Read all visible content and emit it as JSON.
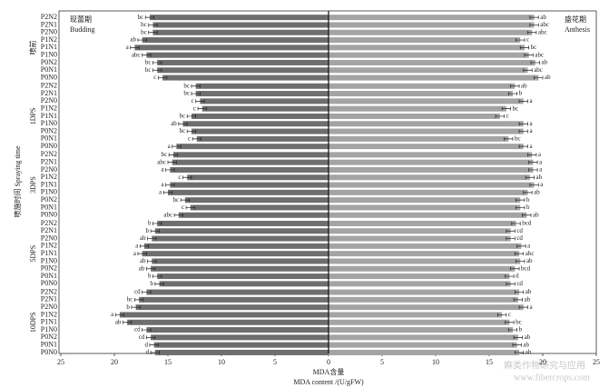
{
  "chart_data": {
    "type": "butterfly-bar",
    "groups": [
      "喷前",
      "1DPS",
      "3DPS",
      "5DPS",
      "10DPS"
    ],
    "categories": [
      "P2N2",
      "P2N1",
      "P2N0",
      "P1N2",
      "P1N1",
      "P1N0",
      "P0N2",
      "P0N1",
      "P0N0",
      "P2N2",
      "P2N1",
      "P2N0",
      "P1N2",
      "P1N1",
      "P1N0",
      "P0N2",
      "P0N1",
      "P0N0",
      "P2N2",
      "P2N1",
      "P2N0",
      "P1N2",
      "P1N1",
      "P1N0",
      "P0N2",
      "P0N1",
      "P0N0",
      "P2N2",
      "P2N1",
      "P2N0",
      "P1N2",
      "P1N1",
      "P1N0",
      "P0N2",
      "P0N1",
      "P0N0",
      "P2N2",
      "P2N1",
      "P2N0",
      "P1N2",
      "P1N1",
      "P1N0",
      "P0N2",
      "P0N1",
      "P0N0"
    ],
    "ylabel": "喷施时间 Spraying time",
    "xlabel": "MDA含量",
    "xlabel_en": "MDA content /(U/gFW)",
    "watermark": [
      "麻类作物研究与应用",
      "www.fibercrops.com"
    ],
    "series": [
      {
        "name": "现蕾期",
        "name_en": "Budding",
        "side": "left",
        "color": "#6e6e6e",
        "xlim": [
          0,
          25
        ],
        "xticks": [
          25,
          20,
          15,
          10,
          5,
          0
        ],
        "values": [
          16.7,
          16.4,
          16.4,
          17.4,
          18.1,
          17.0,
          16.0,
          16.0,
          15.5,
          12.4,
          12.4,
          12.0,
          11.8,
          12.8,
          13.6,
          12.8,
          12.3,
          14.2,
          14.5,
          14.6,
          14.8,
          13.2,
          14.8,
          15.0,
          13.4,
          12.9,
          14.0,
          16.0,
          16.2,
          16.5,
          17.2,
          17.4,
          16.5,
          16.6,
          16.0,
          15.8,
          17.0,
          17.7,
          18.0,
          19.5,
          18.8,
          17.0,
          16.6,
          16.3,
          16.2
        ],
        "errors": [
          0.4,
          0.4,
          0.4,
          0.4,
          0.4,
          0.4,
          0.4,
          0.4,
          0.4,
          0.4,
          0.4,
          0.4,
          0.4,
          0.4,
          0.4,
          0.4,
          0.4,
          0.4,
          0.4,
          0.4,
          0.4,
          0.4,
          0.4,
          0.4,
          0.4,
          0.4,
          0.4,
          0.4,
          0.4,
          0.4,
          0.4,
          0.4,
          0.4,
          0.4,
          0.4,
          0.4,
          0.4,
          0.4,
          0.4,
          0.4,
          0.4,
          0.4,
          0.4,
          0.4,
          0.4
        ],
        "letters": [
          "bc",
          "bc",
          "bc",
          "ab",
          "a",
          "abc",
          "bc",
          "bc",
          "c",
          "bc",
          "bc",
          "c",
          "c",
          "bc",
          "ab",
          "bc",
          "c",
          "a",
          "bc",
          "abc",
          "a",
          "c",
          "a",
          "a",
          "bc",
          "c",
          "abc",
          "b",
          "b",
          "ab",
          "a",
          "a",
          "ab",
          "ab",
          "b",
          "b",
          "cd",
          "bc",
          "b",
          "a",
          "ab",
          "cd",
          "cd",
          "d",
          "d"
        ]
      },
      {
        "name": "盛花期",
        "name_en": "Anthesis",
        "side": "right",
        "color": "#a4a4a4",
        "xlim": [
          0,
          25
        ],
        "xticks": [
          5,
          10,
          15,
          20,
          25
        ],
        "values": [
          19.2,
          19.2,
          19.0,
          17.9,
          18.3,
          18.7,
          19.3,
          18.6,
          19.6,
          17.4,
          17.2,
          18.2,
          16.6,
          16.0,
          18.2,
          18.2,
          16.8,
          18.2,
          19.0,
          19.1,
          19.1,
          18.8,
          19.2,
          18.6,
          17.9,
          17.9,
          18.5,
          17.5,
          17.0,
          17.0,
          18.0,
          17.8,
          17.9,
          17.4,
          16.9,
          17.0,
          17.8,
          17.7,
          18.2,
          16.2,
          16.9,
          17.2,
          17.7,
          17.6,
          17.8
        ],
        "errors": [
          0.4,
          0.4,
          0.4,
          0.4,
          0.4,
          0.4,
          0.4,
          0.4,
          0.4,
          0.4,
          0.4,
          0.4,
          0.4,
          0.4,
          0.4,
          0.4,
          0.4,
          0.4,
          0.4,
          0.4,
          0.4,
          0.4,
          0.4,
          0.4,
          0.4,
          0.4,
          0.4,
          0.4,
          0.4,
          0.4,
          0.4,
          0.4,
          0.4,
          0.4,
          0.4,
          0.4,
          0.4,
          0.4,
          0.4,
          0.4,
          0.4,
          0.4,
          0.4,
          0.4,
          0.4
        ],
        "letters": [
          "ab",
          "abc",
          "abc",
          "c",
          "bc",
          "abc",
          "ab",
          "abc",
          "ab",
          "ab",
          "b",
          "a",
          "bc",
          "c",
          "a",
          "a",
          "bc",
          "a",
          "a",
          "a",
          "a",
          "ab",
          "a",
          "ab",
          "b",
          "b",
          "ab",
          "bcd",
          "cd",
          "cd",
          "a",
          "abc",
          "ab",
          "bcd",
          "d",
          "cd",
          "ab",
          "ab",
          "a",
          "c",
          "bc",
          "b",
          "ab",
          "ab",
          "ab"
        ]
      }
    ]
  }
}
